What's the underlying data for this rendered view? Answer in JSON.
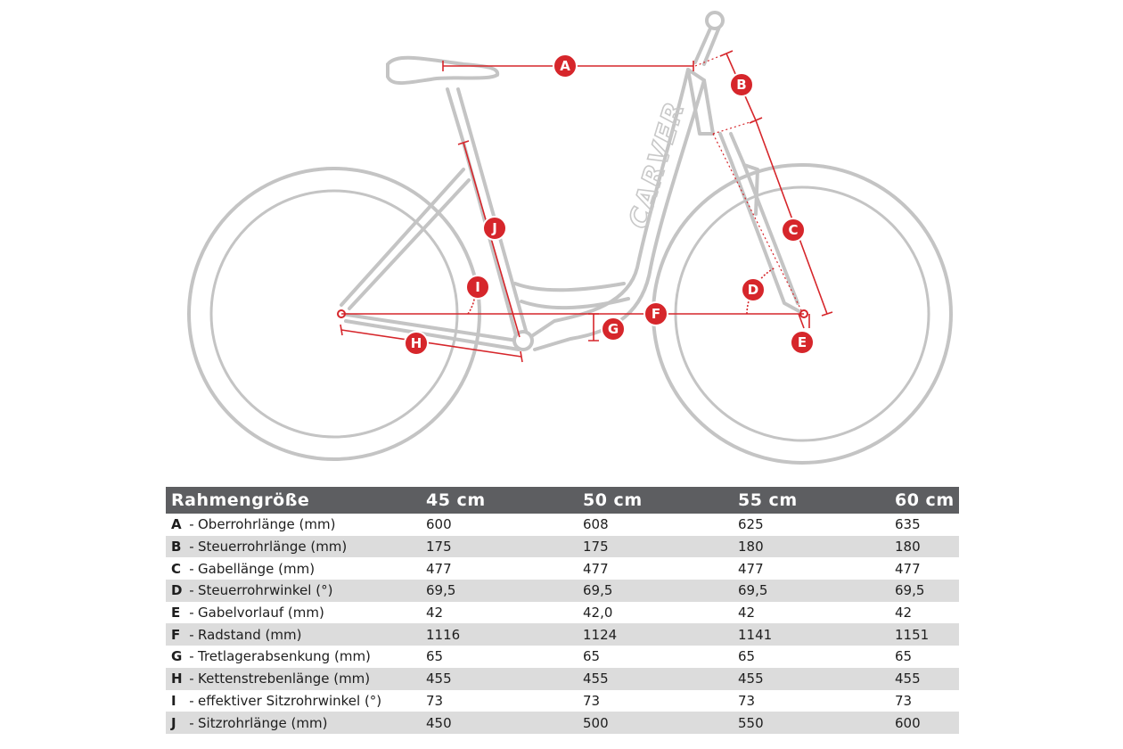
{
  "diagram": {
    "brand": "CARVER",
    "markers": [
      "A",
      "B",
      "C",
      "D",
      "E",
      "F",
      "G",
      "H",
      "I",
      "J"
    ]
  },
  "table": {
    "header": [
      "Rahmengröße",
      "45 cm",
      "50 cm",
      "55 cm",
      "60 cm"
    ],
    "separator": "-",
    "rows": [
      {
        "letter": "A",
        "label": "Oberrohrlänge (mm)",
        "values": [
          "600",
          "608",
          "625",
          "635"
        ]
      },
      {
        "letter": "B",
        "label": "Steuerrohrlänge (mm)",
        "values": [
          "175",
          "175",
          "180",
          "180"
        ]
      },
      {
        "letter": "C",
        "label": "Gabellänge (mm)",
        "values": [
          "477",
          "477",
          "477",
          "477"
        ]
      },
      {
        "letter": "D",
        "label": "Steuerrohrwinkel (°)",
        "values": [
          "69,5",
          "69,5",
          "69,5",
          "69,5"
        ]
      },
      {
        "letter": "E",
        "label": "Gabelvorlauf (mm)",
        "values": [
          "42",
          "42,0",
          "42",
          "42"
        ]
      },
      {
        "letter": "F",
        "label": "Radstand (mm)",
        "values": [
          "1116",
          "1124",
          "1141",
          "1151"
        ]
      },
      {
        "letter": "G",
        "label": "Tretlagerabsenkung (mm)",
        "values": [
          "65",
          "65",
          "65",
          "65"
        ]
      },
      {
        "letter": "H",
        "label": "Kettenstrebenlänge (mm)",
        "values": [
          "455",
          "455",
          "455",
          "455"
        ]
      },
      {
        "letter": "I",
        "label": "effektiver Sitzrohrwinkel (°)",
        "values": [
          "73",
          "73",
          "73",
          "73"
        ]
      },
      {
        "letter": "J",
        "label": "Sitzrohrlänge (mm)",
        "values": [
          "450",
          "500",
          "550",
          "600"
        ]
      }
    ]
  }
}
